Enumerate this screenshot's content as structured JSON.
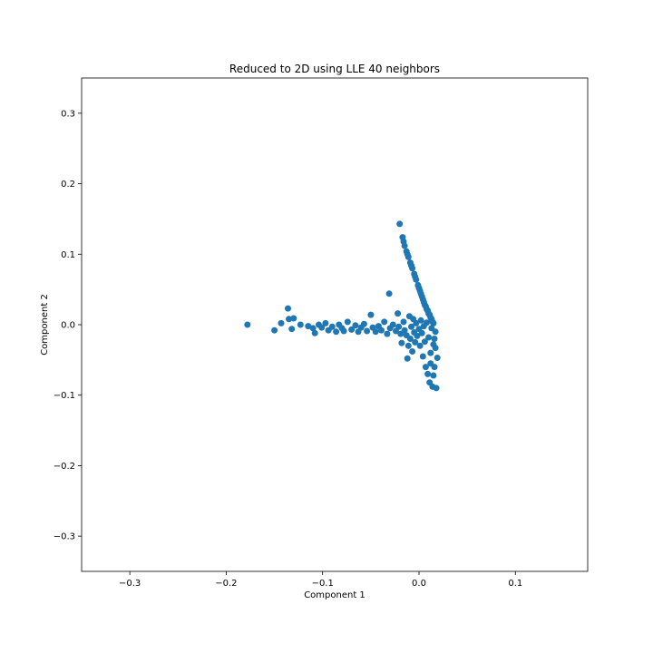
{
  "chart_data": {
    "type": "scatter",
    "title": "Reduced to 2D using LLE 40 neighbors",
    "xlabel": "Component 1",
    "ylabel": "Component 2",
    "xlim": [
      -0.35,
      0.175
    ],
    "ylim": [
      -0.35,
      0.35
    ],
    "xticks": [
      -0.3,
      -0.2,
      -0.1,
      0.0,
      0.1
    ],
    "yticks": [
      -0.3,
      -0.2,
      -0.1,
      0.0,
      0.1,
      0.2,
      0.3
    ],
    "grid": false,
    "marker_color": "#1f77b4",
    "series": [
      {
        "points": [
          [
            -0.178,
            0.0
          ],
          [
            -0.15,
            -0.008
          ],
          [
            -0.143,
            0.002
          ],
          [
            -0.136,
            0.023
          ],
          [
            -0.135,
            0.008
          ],
          [
            -0.132,
            -0.006
          ],
          [
            -0.13,
            0.009
          ],
          [
            -0.123,
            0.0
          ],
          [
            -0.115,
            -0.002
          ],
          [
            -0.11,
            -0.005
          ],
          [
            -0.108,
            -0.012
          ],
          [
            -0.104,
            0.0
          ],
          [
            -0.101,
            -0.004
          ],
          [
            -0.097,
            0.002
          ],
          [
            -0.094,
            -0.008
          ],
          [
            -0.09,
            -0.003
          ],
          [
            -0.086,
            -0.01
          ],
          [
            -0.083,
            0.0
          ],
          [
            -0.08,
            -0.005
          ],
          [
            -0.078,
            -0.009
          ],
          [
            -0.074,
            0.004
          ],
          [
            -0.07,
            -0.007
          ],
          [
            -0.066,
            -0.001
          ],
          [
            -0.063,
            -0.01
          ],
          [
            -0.06,
            -0.004
          ],
          [
            -0.057,
            0.001
          ],
          [
            -0.054,
            -0.009
          ],
          [
            -0.05,
            0.014
          ],
          [
            -0.048,
            -0.004
          ],
          [
            -0.045,
            -0.01
          ],
          [
            -0.042,
            -0.002
          ],
          [
            -0.039,
            -0.008
          ],
          [
            -0.036,
            0.004
          ],
          [
            -0.033,
            -0.013
          ],
          [
            -0.031,
            0.044
          ],
          [
            -0.03,
            -0.005
          ],
          [
            -0.027,
            0.0
          ],
          [
            -0.024,
            -0.009
          ],
          [
            -0.022,
            0.016
          ],
          [
            -0.021,
            -0.003
          ],
          [
            -0.019,
            -0.013
          ],
          [
            -0.018,
            -0.026
          ],
          [
            -0.016,
            0.004
          ],
          [
            -0.015,
            -0.008
          ],
          [
            -0.013,
            -0.015
          ],
          [
            -0.012,
            -0.048
          ],
          [
            -0.011,
            -0.03
          ],
          [
            -0.01,
            0.012
          ],
          [
            -0.009,
            -0.02
          ],
          [
            -0.008,
            -0.003
          ],
          [
            -0.007,
            -0.038
          ],
          [
            -0.006,
            0.008
          ],
          [
            -0.005,
            -0.011
          ],
          [
            -0.004,
            -0.025
          ],
          [
            -0.003,
            0.002
          ],
          [
            -0.002,
            -0.016
          ],
          [
            0.0,
            -0.006
          ],
          [
            0.001,
            -0.03
          ],
          [
            0.002,
            0.006
          ],
          [
            0.003,
            -0.012
          ],
          [
            0.004,
            -0.045
          ],
          [
            0.005,
            -0.002
          ],
          [
            0.006,
            -0.024
          ],
          [
            0.007,
            -0.06
          ],
          [
            0.008,
            0.003
          ],
          [
            0.009,
            -0.07
          ],
          [
            0.01,
            -0.018
          ],
          [
            0.011,
            -0.082
          ],
          [
            0.012,
            -0.04
          ],
          [
            0.013,
            -0.005
          ],
          [
            0.014,
            -0.088
          ],
          [
            0.015,
            -0.028
          ],
          [
            0.016,
            -0.06
          ],
          [
            0.017,
            -0.01
          ],
          [
            0.018,
            -0.09
          ],
          [
            0.019,
            -0.047
          ],
          [
            0.017,
            -0.033
          ],
          [
            0.016,
            -0.02
          ],
          [
            0.015,
            -0.072
          ],
          [
            0.012,
            -0.055
          ],
          [
            -0.02,
            0.143
          ],
          [
            -0.017,
            0.124
          ],
          [
            -0.015,
            0.112
          ],
          [
            -0.013,
            0.104
          ],
          [
            -0.011,
            0.096
          ],
          [
            -0.009,
            0.088
          ],
          [
            -0.007,
            0.08
          ],
          [
            -0.005,
            0.072
          ],
          [
            -0.003,
            0.064
          ],
          [
            -0.001,
            0.056
          ],
          [
            0.001,
            0.048
          ],
          [
            0.003,
            0.04
          ],
          [
            0.005,
            0.032
          ],
          [
            0.007,
            0.026
          ],
          [
            0.009,
            0.02
          ],
          [
            0.011,
            0.014
          ],
          [
            0.013,
            0.008
          ],
          [
            0.015,
            0.002
          ],
          [
            0.004,
            0.036
          ],
          [
            0.008,
            0.022
          ],
          [
            0.012,
            0.01
          ],
          [
            0.01,
            0.016
          ],
          [
            0.006,
            0.028
          ],
          [
            0.002,
            0.044
          ],
          [
            0.0,
            0.052
          ],
          [
            -0.004,
            0.068
          ],
          [
            -0.008,
            0.084
          ],
          [
            -0.012,
            0.1
          ],
          [
            -0.016,
            0.118
          ],
          [
            0.014,
            0.004
          ]
        ]
      }
    ]
  }
}
